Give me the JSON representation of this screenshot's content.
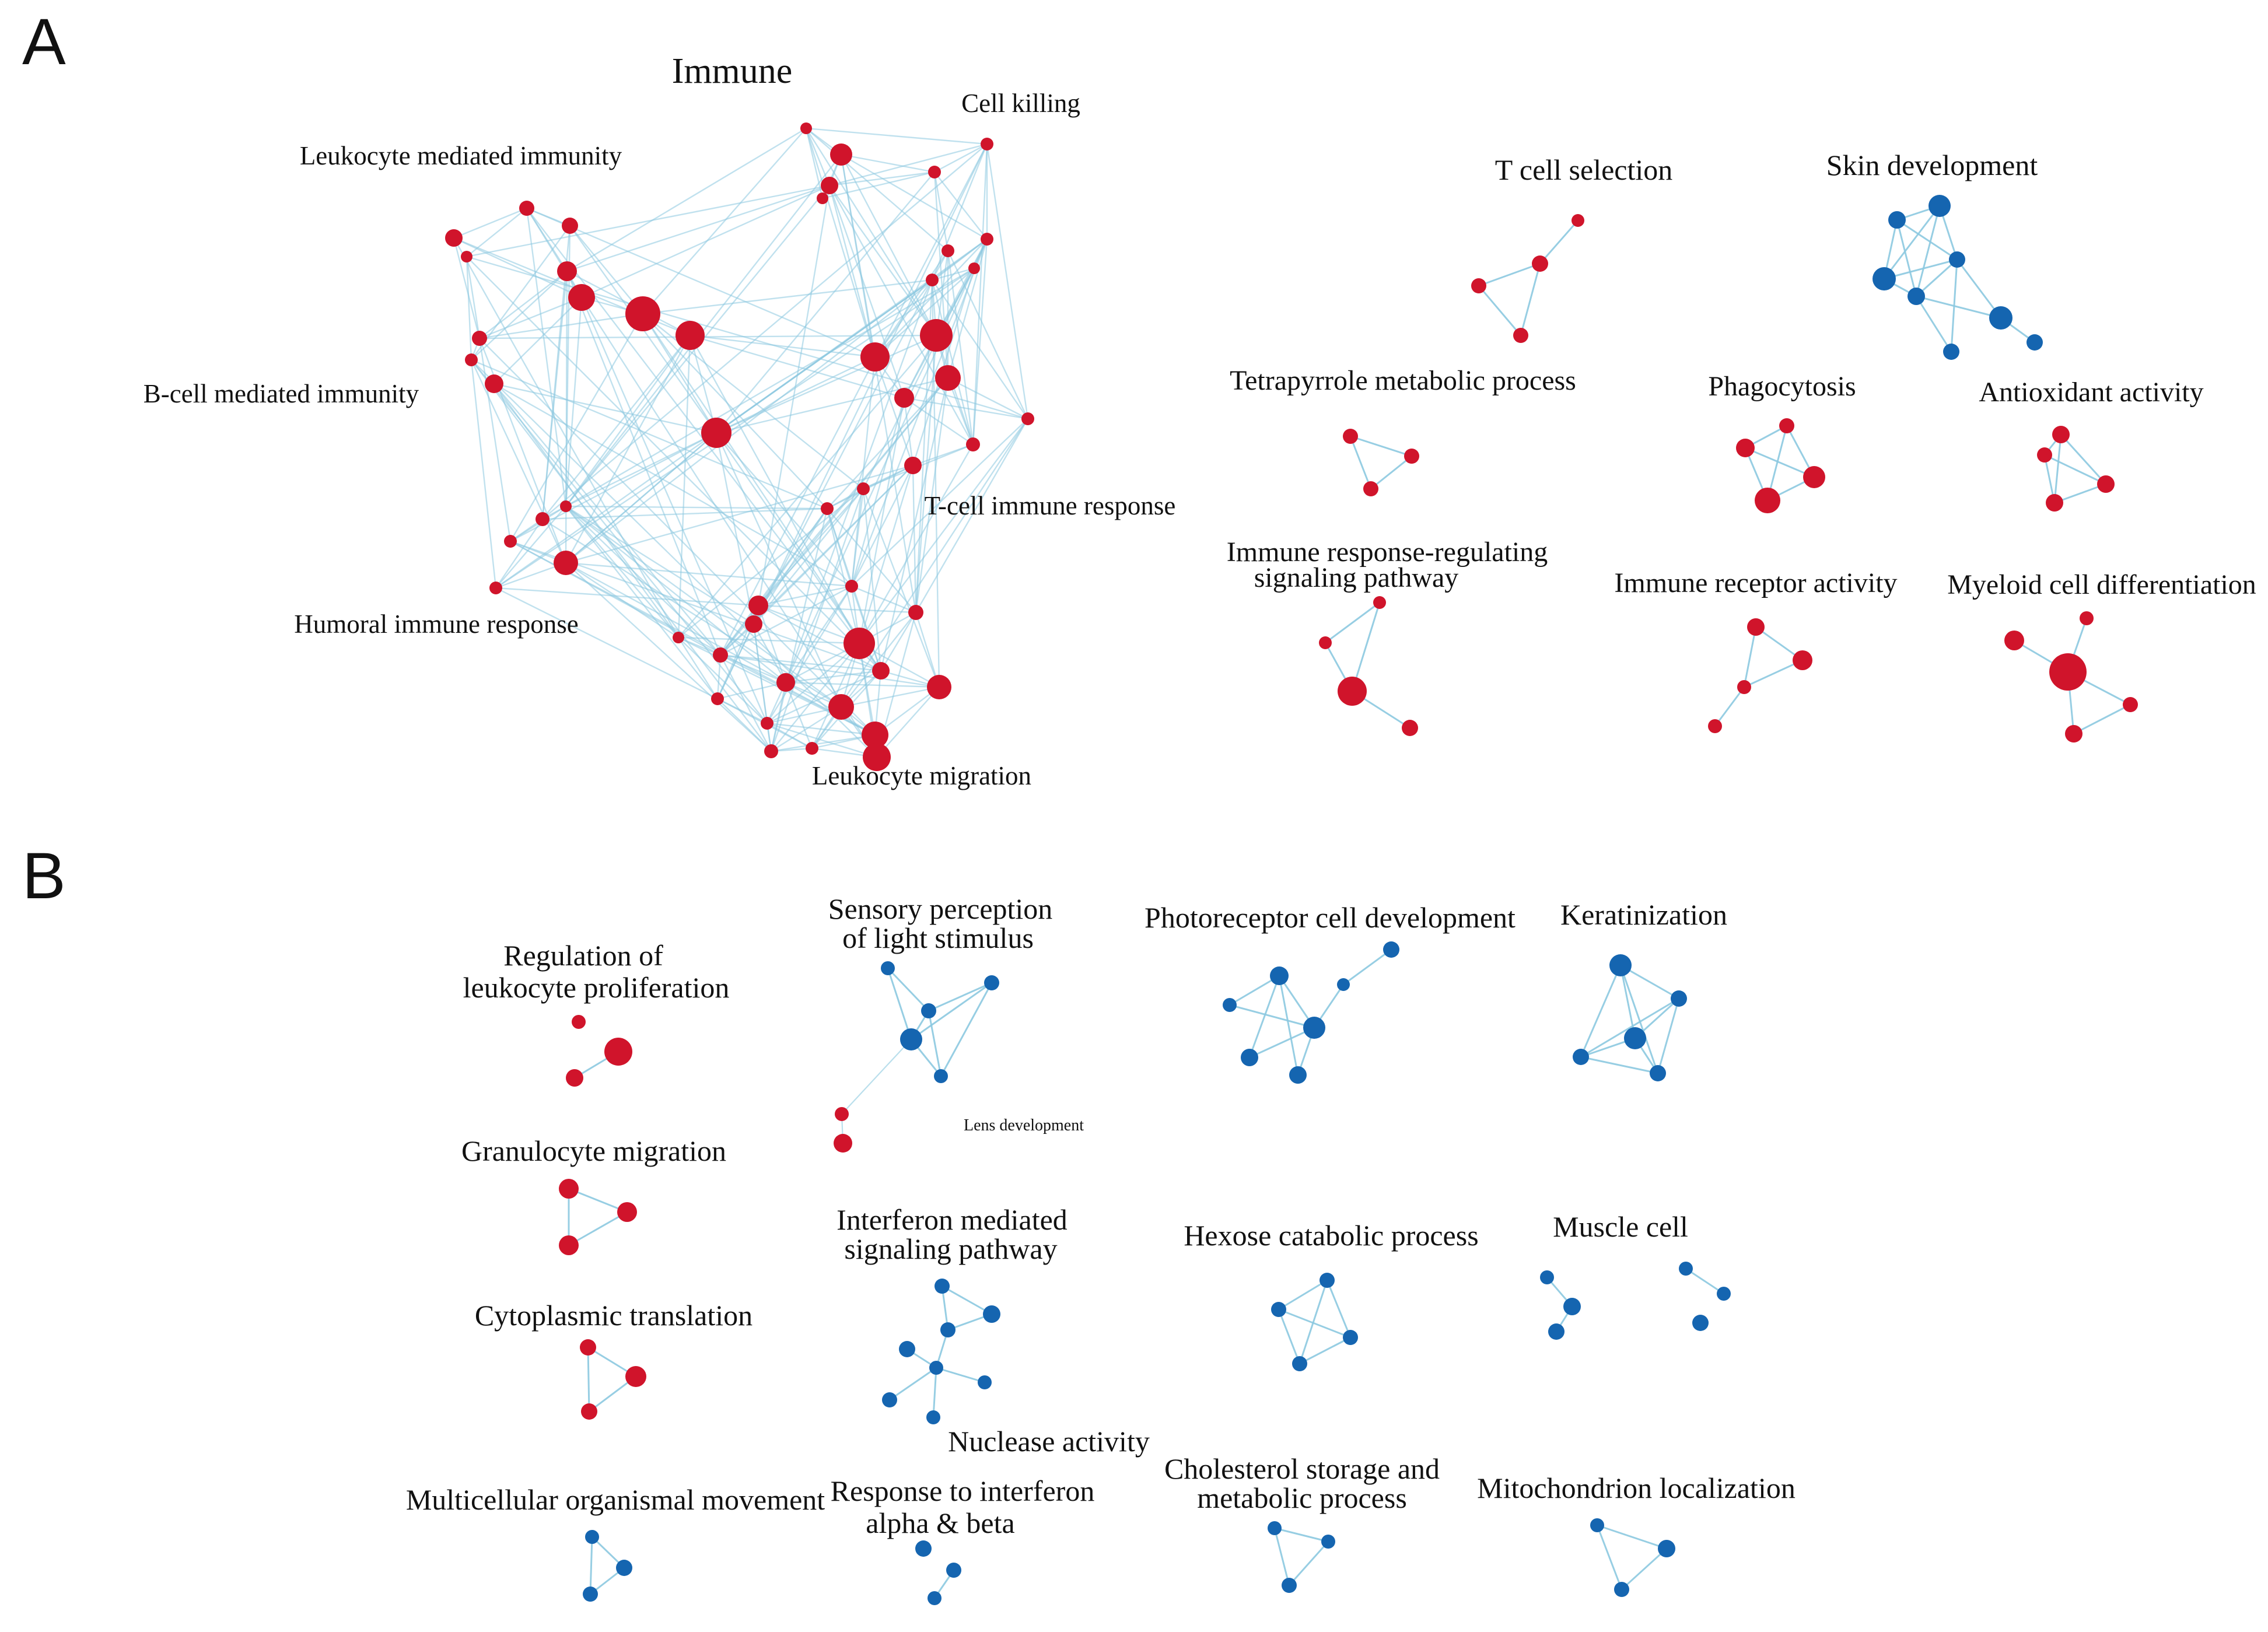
{
  "colors": {
    "background": "#ffffff",
    "up_node": "#d0142b",
    "down_node": "#1565b0",
    "edge": "#8cc9e0"
  },
  "panels": [
    {
      "id": "A",
      "label": "A"
    },
    {
      "id": "B",
      "label": "B"
    }
  ],
  "clusters": [
    {
      "id": "immune",
      "panel": "A",
      "label": "Immune",
      "color": "up"
    },
    {
      "id": "cell-killing",
      "panel": "A",
      "label": "Cell killing",
      "color": "up"
    },
    {
      "id": "leukocyte-mediated-immunity",
      "panel": "A",
      "label": "Leukocyte mediated immunity",
      "color": "up"
    },
    {
      "id": "b-cell-mediated-immunity",
      "panel": "A",
      "label": "B-cell mediated immunity",
      "color": "up"
    },
    {
      "id": "t-cell-immune-response",
      "panel": "A",
      "label": "T-cell immune response",
      "color": "up"
    },
    {
      "id": "humoral-immune-response",
      "panel": "A",
      "label": "Humoral immune response",
      "color": "up"
    },
    {
      "id": "leukocyte-migration",
      "panel": "A",
      "label": "Leukocyte migration",
      "color": "up"
    },
    {
      "id": "t-cell-selection",
      "panel": "A",
      "label": "T cell selection",
      "color": "up"
    },
    {
      "id": "skin-development",
      "panel": "A",
      "label": "Skin development",
      "color": "down"
    },
    {
      "id": "tetrapyrrole-metabolic-process",
      "panel": "A",
      "label": "Tetrapyrrole metabolic process",
      "color": "up"
    },
    {
      "id": "phagocytosis",
      "panel": "A",
      "label": "Phagocytosis",
      "color": "up"
    },
    {
      "id": "antioxidant-activity",
      "panel": "A",
      "label": "Antioxidant activity",
      "color": "up"
    },
    {
      "id": "immune-response-regulating-signaling-pathway",
      "panel": "A",
      "label": [
        "Immune response-regulating",
        "signaling pathway"
      ],
      "color": "up"
    },
    {
      "id": "immune-receptor-activity",
      "panel": "A",
      "label": "Immune receptor activity",
      "color": "up"
    },
    {
      "id": "myeloid-cell-differentiation",
      "panel": "A",
      "label": "Myeloid cell differentiation",
      "color": "up"
    },
    {
      "id": "regulation-of-leukocyte-proliferation",
      "panel": "B",
      "label": [
        "Regulation of",
        "leukocyte proliferation"
      ],
      "color": "up"
    },
    {
      "id": "sensory-perception-of-light-stimulus",
      "panel": "B",
      "label": [
        "Sensory perception",
        "of light stimulus"
      ],
      "color": "down"
    },
    {
      "id": "lens-development",
      "panel": "B",
      "label": "Lens development",
      "color": "up"
    },
    {
      "id": "photoreceptor-cell-development",
      "panel": "B",
      "label": "Photoreceptor cell development",
      "color": "down"
    },
    {
      "id": "keratinization",
      "panel": "B",
      "label": "Keratinization",
      "color": "down"
    },
    {
      "id": "granulocyte-migration",
      "panel": "B",
      "label": "Granulocyte migration",
      "color": "up"
    },
    {
      "id": "interferon-mediated-signaling-pathway",
      "panel": "B",
      "label": [
        "Interferon mediated",
        "signaling pathway"
      ],
      "color": "down"
    },
    {
      "id": "hexose-catabolic-process",
      "panel": "B",
      "label": "Hexose catabolic process",
      "color": "down"
    },
    {
      "id": "muscle-cell",
      "panel": "B",
      "label": "Muscle cell",
      "color": "down"
    },
    {
      "id": "cytoplasmic-translation",
      "panel": "B",
      "label": "Cytoplasmic translation",
      "color": "up"
    },
    {
      "id": "nuclease-activity",
      "panel": "B",
      "label": "Nuclease activity",
      "color": "down"
    },
    {
      "id": "multicellular-organismal-movement",
      "panel": "B",
      "label": "Multicellular organismal movement",
      "color": "down"
    },
    {
      "id": "response-to-interferon-alpha-beta",
      "panel": "B",
      "label": [
        "Response to interferon",
        "alpha & beta"
      ],
      "color": "down"
    },
    {
      "id": "cholesterol-storage-and-metabolic-process",
      "panel": "B",
      "label": [
        "Cholesterol storage and",
        "metabolic process"
      ],
      "color": "down"
    },
    {
      "id": "mitochondrion-localization",
      "panel": "B",
      "label": "Mitochondrion localization",
      "color": "down"
    }
  ]
}
